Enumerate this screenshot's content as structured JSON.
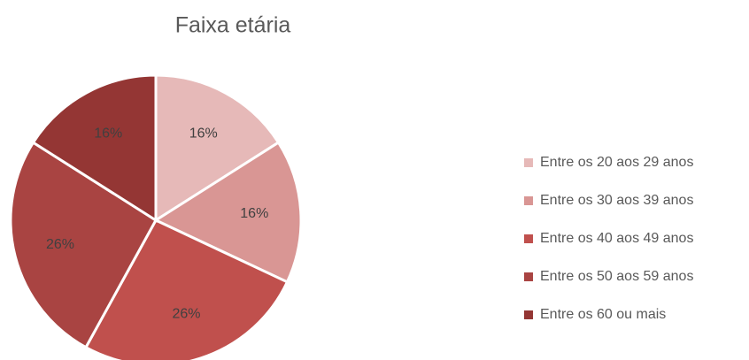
{
  "chart_data": {
    "type": "pie",
    "title": "Faixa etária",
    "categories": [
      "Entre os 20 aos 29 anos",
      "Entre os 30 aos 39 anos",
      "Entre os 40 aos 49 anos",
      "Entre os 50 aos 59 anos",
      "Entre os 60 ou mais"
    ],
    "values": [
      16,
      16,
      26,
      26,
      16
    ],
    "value_labels": [
      "16%",
      "16%",
      "26%",
      "26%",
      "16%"
    ],
    "colors": [
      "#e6b9b8",
      "#d99694",
      "#c0504d",
      "#a94442",
      "#943634"
    ],
    "legend": "right"
  }
}
